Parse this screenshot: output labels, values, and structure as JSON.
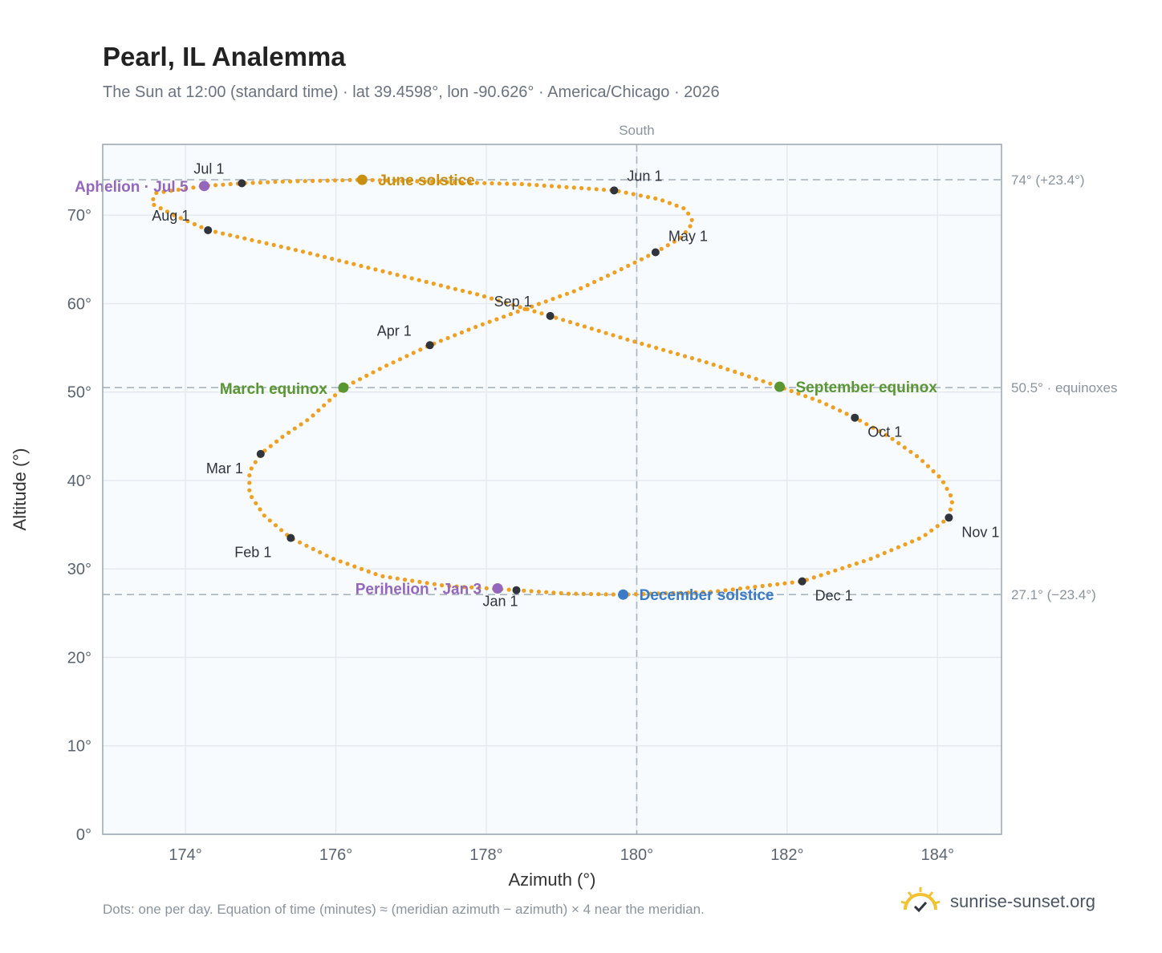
{
  "title": "Pearl, IL Analemma",
  "subtitle": "The Sun at 12:00 (standard time) · lat 39.4598°, lon -90.626° · America/Chicago · 2026",
  "footnote": "Dots: one per day. Equation of time (minutes) ≈ (meridian azimuth − azimuth) × 4 near the meridian.",
  "brand": "sunrise-sunset.org",
  "colors": {
    "curve": "#f0a020",
    "month": "#2f343d",
    "solstice_june": "#c8900e",
    "solstice_dec": "#3a7bc8",
    "equinox": "#5a9632",
    "apsis": "#9467bd",
    "ref_line": "#a8b4bf",
    "plot_bg": "#f8fbfd",
    "grid": "#e5eaef"
  },
  "chart_data": {
    "type": "scatter",
    "xlabel": "Azimuth (°)",
    "ylabel": "Altitude (°)",
    "xlim": [
      172.9,
      184.85
    ],
    "ylim": [
      0,
      78
    ],
    "x_ticks": [
      174,
      176,
      178,
      180,
      182,
      184
    ],
    "x_tick_labels": [
      "174°",
      "176°",
      "178°",
      "180°",
      "182°",
      "184°"
    ],
    "y_ticks": [
      0,
      10,
      20,
      30,
      40,
      50,
      60,
      70
    ],
    "y_tick_labels": [
      "0°",
      "10°",
      "20°",
      "30°",
      "40°",
      "50°",
      "60°",
      "70°"
    ],
    "grid": true,
    "meridian": {
      "x": 180,
      "label": "South"
    },
    "reference_lines": [
      {
        "y": 74.0,
        "label": "74° (+23.4°)"
      },
      {
        "y": 50.5,
        "label": "50.5° · equinoxes"
      },
      {
        "y": 27.1,
        "label": "27.1° (−23.4°)"
      }
    ],
    "path": [
      [
        178.4,
        27.6
      ],
      [
        177.45,
        28.1
      ],
      [
        176.6,
        29.2
      ],
      [
        175.95,
        31.2
      ],
      [
        175.4,
        33.5
      ],
      [
        175.05,
        36.0
      ],
      [
        174.85,
        38.5
      ],
      [
        174.85,
        41.0
      ],
      [
        175.0,
        43.0
      ],
      [
        175.3,
        45.0
      ],
      [
        175.65,
        47.0
      ],
      [
        176.1,
        50.5
      ],
      [
        176.65,
        52.9
      ],
      [
        177.25,
        55.3
      ],
      [
        177.9,
        57.5
      ],
      [
        178.55,
        59.5
      ],
      [
        179.2,
        61.5
      ],
      [
        179.75,
        63.7
      ],
      [
        180.25,
        65.8
      ],
      [
        180.6,
        67.5
      ],
      [
        180.75,
        69.2
      ],
      [
        180.65,
        70.7
      ],
      [
        180.3,
        71.8
      ],
      [
        179.7,
        72.8
      ],
      [
        178.5,
        73.5
      ],
      [
        176.35,
        74.0
      ],
      [
        175.3,
        73.8
      ],
      [
        174.75,
        73.6
      ],
      [
        174.25,
        73.3
      ],
      [
        173.6,
        72.5
      ],
      [
        173.55,
        71.3
      ],
      [
        173.85,
        70.0
      ],
      [
        174.3,
        68.3
      ],
      [
        175.5,
        66.0
      ],
      [
        176.7,
        63.5
      ],
      [
        177.9,
        61.0
      ],
      [
        178.85,
        58.6
      ],
      [
        179.85,
        56.0
      ],
      [
        180.95,
        53.3
      ],
      [
        181.9,
        50.6
      ],
      [
        182.45,
        48.9
      ],
      [
        182.9,
        47.1
      ],
      [
        183.35,
        45.0
      ],
      [
        183.75,
        42.6
      ],
      [
        184.05,
        40.2
      ],
      [
        184.2,
        37.9
      ],
      [
        184.15,
        35.8
      ],
      [
        183.8,
        33.6
      ],
      [
        183.1,
        31.1
      ],
      [
        182.2,
        28.6
      ],
      [
        181.0,
        27.4
      ],
      [
        179.82,
        27.1
      ],
      [
        179.1,
        27.2
      ],
      [
        178.4,
        27.6
      ]
    ],
    "month_markers": [
      {
        "label": "Jan 1",
        "x": 178.4,
        "y": 27.6
      },
      {
        "label": "Feb 1",
        "x": 175.4,
        "y": 33.5
      },
      {
        "label": "Mar 1",
        "x": 175.0,
        "y": 43.0
      },
      {
        "label": "Apr 1",
        "x": 177.25,
        "y": 55.3
      },
      {
        "label": "May 1",
        "x": 180.25,
        "y": 65.8
      },
      {
        "label": "Jun 1",
        "x": 179.7,
        "y": 72.8
      },
      {
        "label": "Jul 1",
        "x": 174.75,
        "y": 73.6
      },
      {
        "label": "Aug 1",
        "x": 174.3,
        "y": 68.3
      },
      {
        "label": "Sep 1",
        "x": 178.85,
        "y": 58.6
      },
      {
        "label": "Oct 1",
        "x": 182.9,
        "y": 47.1
      },
      {
        "label": "Nov 1",
        "x": 184.15,
        "y": 35.8
      },
      {
        "label": "Dec 1",
        "x": 182.2,
        "y": 28.6
      }
    ],
    "events": [
      {
        "label": "June solstice",
        "x": 176.35,
        "y": 74.0,
        "kind": "solstice_june"
      },
      {
        "label": "December solstice",
        "x": 179.82,
        "y": 27.1,
        "kind": "solstice_dec"
      },
      {
        "label": "March equinox",
        "x": 176.1,
        "y": 50.5,
        "kind": "equinox"
      },
      {
        "label": "September equinox",
        "x": 181.9,
        "y": 50.6,
        "kind": "equinox"
      },
      {
        "label": "Aphelion · Jul 5",
        "x": 174.25,
        "y": 73.3,
        "kind": "apsis"
      },
      {
        "label": "Perihelion · Jan 3",
        "x": 178.15,
        "y": 27.8,
        "kind": "apsis"
      }
    ]
  }
}
